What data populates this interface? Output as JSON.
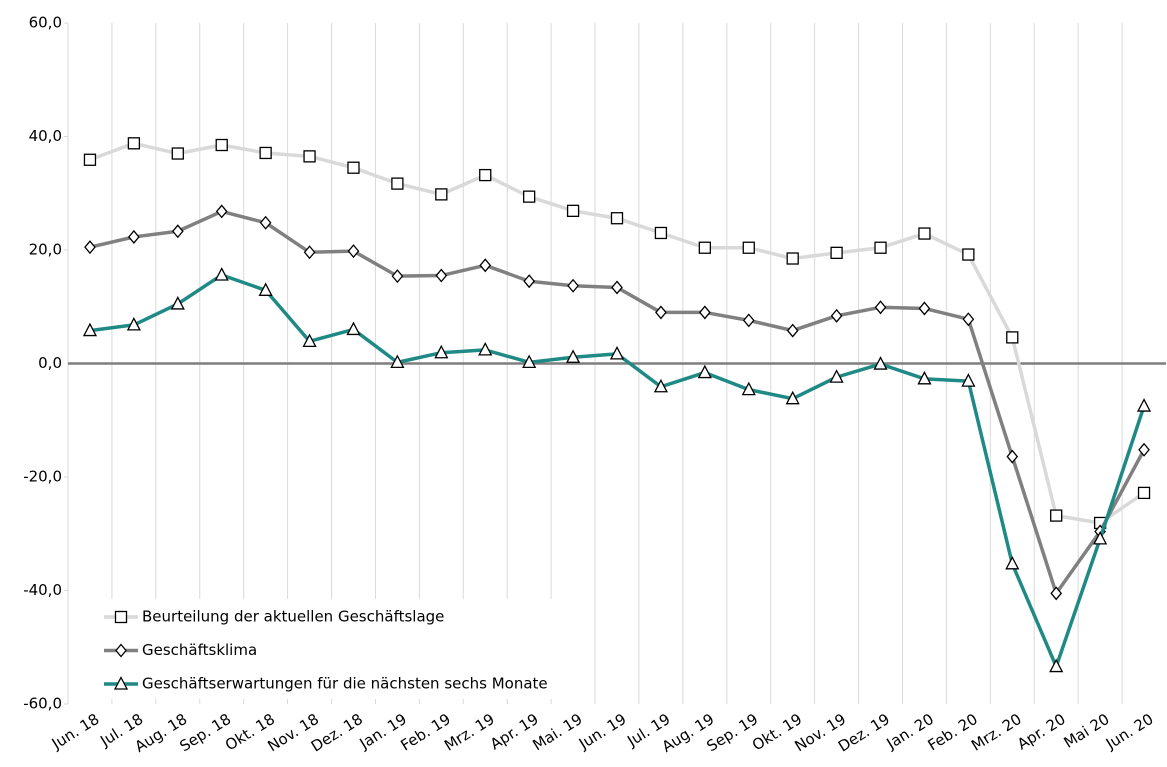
{
  "chart_data": {
    "type": "line",
    "categories": [
      "Jun. 18",
      "Jul. 18",
      "Aug. 18",
      "Sep. 18",
      "Okt. 18",
      "Nov. 18",
      "Dez. 18",
      "Jan. 19",
      "Feb. 19",
      "Mrz. 19",
      "Apr. 19",
      "Mai. 19",
      "Jun. 19",
      "Jul. 19",
      "Aug. 19",
      "Sep. 19",
      "Okt. 19",
      "Nov. 19",
      "Dez. 19",
      "Jan. 20",
      "Feb. 20",
      "Mrz. 20",
      "Apr. 20",
      "Mai 20",
      "Jun. 20"
    ],
    "series": [
      {
        "name": "Beurteilung der aktuellen Geschäftslage",
        "color": "#d9d9d9",
        "marker": "square",
        "values": [
          35.9,
          38.8,
          37.0,
          38.5,
          37.1,
          36.5,
          34.5,
          31.7,
          29.8,
          33.2,
          29.4,
          26.9,
          25.6,
          23.0,
          20.4,
          20.4,
          18.5,
          19.5,
          20.4,
          22.9,
          19.2,
          4.6,
          -26.8,
          -28.1,
          -22.8
        ]
      },
      {
        "name": "Geschäftsklima",
        "color": "#808080",
        "marker": "diamond",
        "values": [
          20.5,
          22.3,
          23.3,
          26.8,
          24.8,
          19.6,
          19.8,
          15.4,
          15.5,
          17.3,
          14.5,
          13.7,
          13.4,
          9.0,
          9.0,
          7.6,
          5.8,
          8.4,
          9.9,
          9.7,
          7.8,
          -16.4,
          -40.5,
          -29.6,
          -15.2
        ]
      },
      {
        "name": "Geschäftserwartungen für die nächsten sechs Monate",
        "color": "#1f8a85",
        "marker": "triangle",
        "values": [
          5.8,
          6.8,
          10.5,
          15.6,
          12.9,
          3.9,
          6.0,
          0.2,
          1.9,
          2.4,
          0.2,
          1.1,
          1.7,
          -4.1,
          -1.6,
          -4.6,
          -6.2,
          -2.4,
          -0.1,
          -2.7,
          -3.1,
          -35.3,
          -53.4,
          -30.9,
          -7.5
        ]
      }
    ],
    "ylim": [
      -60,
      60
    ],
    "yticks": [
      {
        "value": -60,
        "label": "-60,0"
      },
      {
        "value": -40,
        "label": "-40,0"
      },
      {
        "value": -20,
        "label": "-20,0"
      },
      {
        "value": 0,
        "label": "0,0"
      },
      {
        "value": 20,
        "label": "20,0"
      },
      {
        "value": 40,
        "label": "40,0"
      },
      {
        "value": 60,
        "label": "60,0"
      }
    ],
    "grid": true,
    "legend": "lower left"
  }
}
